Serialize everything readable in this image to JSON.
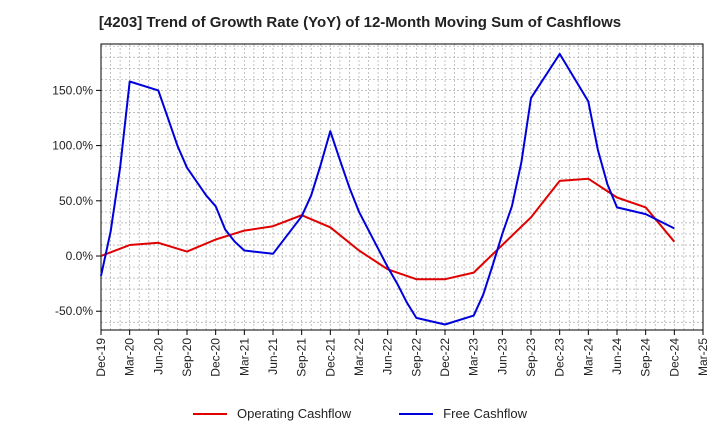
{
  "colors": {
    "operating": "#e00000",
    "free": "#0000dd",
    "grid": "#aaaaaa",
    "axis": "#000000"
  },
  "chart_data": {
    "type": "line",
    "title": "[4203]  Trend of Growth Rate (YoY) of 12-Month Moving Sum of Cashflows",
    "xlabel": "",
    "ylabel": "",
    "x_ticks": [
      "Dec-19",
      "Mar-20",
      "Jun-20",
      "Sep-20",
      "Dec-20",
      "Mar-21",
      "Jun-21",
      "Sep-21",
      "Dec-21",
      "Mar-22",
      "Jun-22",
      "Sep-22",
      "Dec-22",
      "Mar-23",
      "Jun-23",
      "Sep-23",
      "Dec-23",
      "Mar-24",
      "Jun-24",
      "Sep-24",
      "Dec-24",
      "Mar-25"
    ],
    "y_ticks": [
      "150.0%",
      "100.0%",
      "50.0%",
      "0.0%",
      "-50.0%"
    ],
    "ylim": [
      -67,
      192
    ],
    "grid": true,
    "legend_position": "bottom",
    "series": [
      {
        "name": "Operating Cashflow",
        "color": "#e00000",
        "points": [
          [
            0,
            0
          ],
          [
            3,
            10
          ],
          [
            6,
            12
          ],
          [
            9,
            4
          ],
          [
            12,
            15
          ],
          [
            15,
            23
          ],
          [
            18,
            27
          ],
          [
            21,
            37
          ],
          [
            24,
            26
          ],
          [
            27,
            5
          ],
          [
            30,
            -12
          ],
          [
            33,
            -21
          ],
          [
            36,
            -21
          ],
          [
            39,
            -15
          ],
          [
            42,
            10
          ],
          [
            45,
            35
          ],
          [
            48,
            68
          ],
          [
            51,
            70
          ],
          [
            54,
            53
          ],
          [
            57,
            44
          ],
          [
            60,
            13
          ]
        ]
      },
      {
        "name": "Free Cashflow",
        "color": "#0000dd",
        "points": [
          [
            0,
            -18
          ],
          [
            1,
            22
          ],
          [
            2,
            80
          ],
          [
            3,
            158
          ],
          [
            6,
            150
          ],
          [
            7,
            125
          ],
          [
            8,
            100
          ],
          [
            9,
            80
          ],
          [
            11,
            55
          ],
          [
            12,
            45
          ],
          [
            13,
            24
          ],
          [
            14,
            13
          ],
          [
            15,
            5
          ],
          [
            18,
            2
          ],
          [
            21,
            36
          ],
          [
            22,
            55
          ],
          [
            23,
            83
          ],
          [
            24,
            113
          ],
          [
            25,
            87
          ],
          [
            26,
            62
          ],
          [
            27,
            40
          ],
          [
            30,
            -10
          ],
          [
            31,
            -25
          ],
          [
            32,
            -42
          ],
          [
            33,
            -56
          ],
          [
            36,
            -62
          ],
          [
            39,
            -54
          ],
          [
            40,
            -35
          ],
          [
            41,
            -8
          ],
          [
            42,
            20
          ],
          [
            43,
            45
          ],
          [
            44,
            85
          ],
          [
            45,
            143
          ],
          [
            48,
            183
          ],
          [
            51,
            140
          ],
          [
            52,
            96
          ],
          [
            53,
            65
          ],
          [
            54,
            44
          ],
          [
            57,
            38
          ],
          [
            60,
            25
          ]
        ]
      }
    ]
  }
}
